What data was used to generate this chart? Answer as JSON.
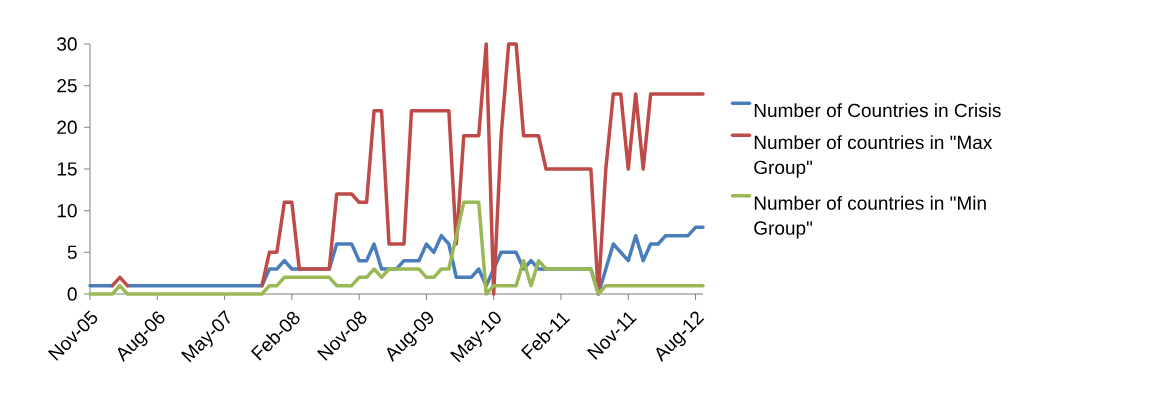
{
  "chart_data": {
    "type": "line",
    "xlim": [
      "2005-11",
      "2012-09"
    ],
    "ylim": [
      0,
      30
    ],
    "yticks": [
      0,
      5,
      10,
      15,
      20,
      25,
      30
    ],
    "xticks": [
      {
        "value": "2005-11",
        "label": "Nov-05"
      },
      {
        "value": "2006-08",
        "label": "Aug-06"
      },
      {
        "value": "2007-05",
        "label": "May-07"
      },
      {
        "value": "2008-02",
        "label": "Feb-08"
      },
      {
        "value": "2008-11",
        "label": "Nov-08"
      },
      {
        "value": "2009-08",
        "label": "Aug-09"
      },
      {
        "value": "2010-05",
        "label": "May-10"
      },
      {
        "value": "2011-02",
        "label": "Feb-11"
      },
      {
        "value": "2011-11",
        "label": "Nov-11"
      },
      {
        "value": "2012-08",
        "label": "Aug-12"
      }
    ],
    "grid": false,
    "legend": "right",
    "marker": "none",
    "line_style": "solid",
    "series": [
      {
        "name": "Number of Countries in Crisis",
        "color": "#4a7ebb",
        "x": [
          "2005-11",
          "2006-02",
          "2006-03",
          "2006-04",
          "2007-10",
          "2007-11",
          "2007-12",
          "2008-01",
          "2008-02",
          "2008-03",
          "2008-07",
          "2008-08",
          "2008-10",
          "2008-11",
          "2008-12",
          "2009-01",
          "2009-02",
          "2009-04",
          "2009-05",
          "2009-06",
          "2009-07",
          "2009-08",
          "2009-09",
          "2009-10",
          "2009-11",
          "2009-12",
          "2010-02",
          "2010-03",
          "2010-04",
          "2010-06",
          "2010-08",
          "2010-09",
          "2010-10",
          "2010-11",
          "2011-06",
          "2011-07",
          "2011-09",
          "2011-11",
          "2011-12",
          "2012-01",
          "2012-02",
          "2012-03",
          "2012-04",
          "2012-07",
          "2012-08",
          "2012-09"
        ],
        "values": [
          1,
          1,
          null,
          1,
          1,
          3,
          3,
          4,
          3,
          3,
          3,
          6,
          6,
          4,
          4,
          6,
          3,
          3,
          4,
          4,
          4,
          6,
          5,
          7,
          6,
          2,
          2,
          3,
          1,
          5,
          5,
          3,
          4,
          3,
          3,
          0,
          6,
          4,
          7,
          4,
          6,
          6,
          7,
          7,
          8,
          8
        ]
      },
      {
        "name": "Number of countries in \"Max Group\"",
        "color": "#be4b48",
        "x": [
          "2006-02",
          "2006-03",
          "2006-04",
          "2006-05",
          "2007-10",
          "2007-11",
          "2007-12",
          "2008-01",
          "2008-02",
          "2008-03",
          "2008-07",
          "2008-08",
          "2008-10",
          "2008-11",
          "2008-12",
          "2009-01",
          "2009-02",
          "2009-03",
          "2009-05",
          "2009-06",
          "2009-11",
          "2009-12",
          "2010-01",
          "2010-03",
          "2010-04",
          "2010-05",
          "2010-06",
          "2010-07",
          "2010-08",
          "2010-09",
          "2010-11",
          "2010-12",
          "2011-06",
          "2011-07",
          "2011-08",
          "2011-09",
          "2011-10",
          "2011-11",
          "2011-12",
          "2012-01",
          "2012-02",
          "2012-09"
        ],
        "values": [
          1,
          2,
          1,
          null,
          1,
          5,
          5,
          11,
          11,
          3,
          3,
          12,
          12,
          11,
          11,
          22,
          22,
          6,
          6,
          22,
          22,
          6,
          19,
          19,
          30,
          0,
          19,
          30,
          30,
          19,
          19,
          15,
          15,
          0,
          15,
          24,
          24,
          15,
          24,
          15,
          24,
          24
        ]
      },
      {
        "name": "Number of countries in \"Min Group\"",
        "color": "#98b954",
        "x": [
          "2005-11",
          "2006-02",
          "2006-03",
          "2006-04",
          "2007-10",
          "2007-11",
          "2007-12",
          "2008-01",
          "2008-07",
          "2008-08",
          "2008-10",
          "2008-11",
          "2008-12",
          "2009-01",
          "2009-02",
          "2009-03",
          "2009-06",
          "2009-07",
          "2009-08",
          "2009-09",
          "2009-10",
          "2009-11",
          "2010-01",
          "2010-03",
          "2010-04",
          "2010-05",
          "2010-08",
          "2010-09",
          "2010-10",
          "2010-11",
          "2010-12",
          "2011-06",
          "2011-07",
          "2011-08",
          "2012-09"
        ],
        "values": [
          0,
          0,
          1,
          0,
          0,
          1,
          1,
          2,
          2,
          1,
          1,
          2,
          2,
          3,
          2,
          3,
          3,
          3,
          2,
          2,
          3,
          3,
          11,
          11,
          0,
          1,
          1,
          4,
          1,
          4,
          3,
          3,
          0,
          1,
          1
        ]
      }
    ]
  }
}
